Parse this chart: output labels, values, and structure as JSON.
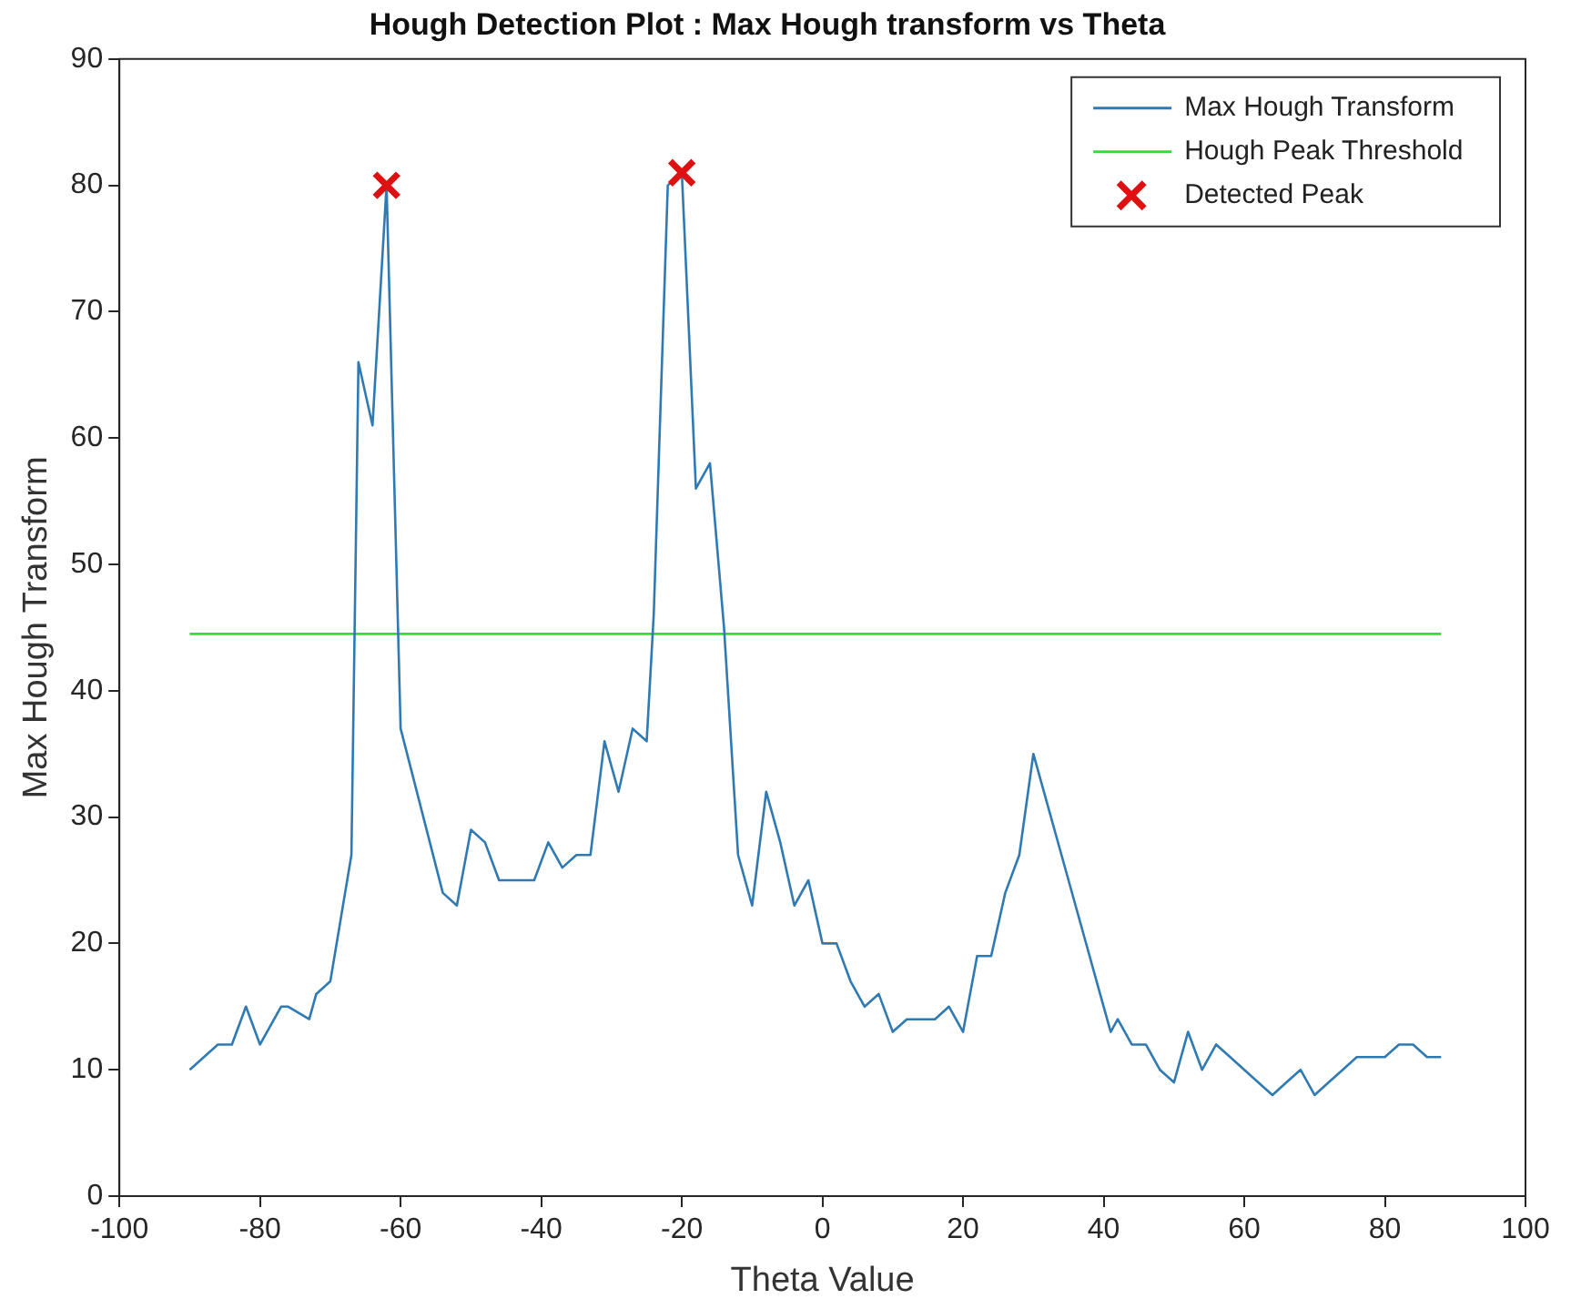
{
  "chart_data": {
    "type": "line",
    "title": "Hough Detection Plot : Max Hough transform vs Theta",
    "xlabel": "Theta Value",
    "ylabel": "Max Hough Transform",
    "xlim": [
      -100,
      100
    ],
    "xticks": [
      -100,
      -80,
      -60,
      -40,
      -20,
      0,
      20,
      40,
      60,
      80,
      100
    ],
    "ylim": [
      0,
      90
    ],
    "yticks": [
      0,
      10,
      20,
      30,
      40,
      50,
      60,
      70,
      80,
      90
    ],
    "grid": false,
    "legend": "top right",
    "series": [
      {
        "name": "Max Hough Transform",
        "type": "line",
        "color": "#2f7ab3",
        "marker": "none",
        "line_style": "solid",
        "x": [
          -90,
          -86,
          -84,
          -82,
          -80,
          -77,
          -76,
          -73,
          -72,
          -70,
          -67,
          -66,
          -64,
          -62,
          -60,
          -54,
          -52,
          -50,
          -48,
          -46,
          -41,
          -39,
          -37,
          -35,
          -33,
          -31,
          -29,
          -27,
          -25,
          -24,
          -22,
          -20,
          -18,
          -16,
          -14,
          -12,
          -10,
          -8,
          -6,
          -4,
          -2,
          0,
          2,
          4,
          6,
          8,
          10,
          12,
          16,
          18,
          20,
          22,
          24,
          26,
          28,
          30,
          32,
          35,
          37,
          39,
          41,
          42,
          44,
          46,
          48,
          50,
          52,
          54,
          56,
          58,
          60,
          64,
          66,
          68,
          70,
          72,
          74,
          76,
          80,
          82,
          84,
          86,
          88
        ],
        "values": [
          10,
          12,
          12,
          15,
          12,
          15,
          15,
          14,
          16,
          17,
          27,
          66,
          61,
          80,
          37,
          24,
          23,
          29,
          28,
          25,
          25,
          28,
          26,
          27,
          27,
          36,
          32,
          37,
          36,
          46,
          80,
          81,
          56,
          58,
          45,
          27,
          23,
          32,
          28,
          23,
          25,
          20,
          20,
          17,
          15,
          16,
          13,
          14,
          14,
          15,
          13,
          19,
          19,
          24,
          27,
          35,
          31,
          25,
          21,
          17,
          13,
          14,
          12,
          12,
          10,
          9,
          13,
          10,
          12,
          11,
          10,
          8,
          9,
          10,
          8,
          9,
          10,
          11,
          11,
          12,
          12,
          11,
          11
        ]
      },
      {
        "name": "Hough Peak Threshold",
        "type": "line",
        "color": "#33dd33",
        "marker": "none",
        "line_style": "solid",
        "x": [
          -90,
          88
        ],
        "values": [
          44.5,
          44.5
        ]
      },
      {
        "name": "Detected Peak",
        "type": "scatter",
        "color": "#dd1111",
        "marker": "cross",
        "x": [
          -62,
          -20
        ],
        "values": [
          80,
          81
        ]
      }
    ]
  }
}
